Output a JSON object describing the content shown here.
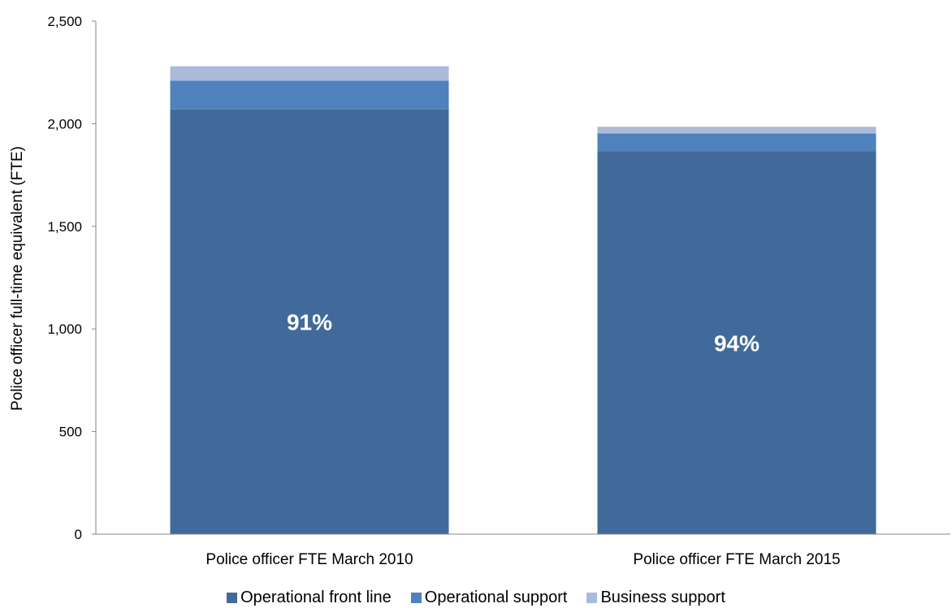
{
  "chart_data": {
    "type": "bar",
    "stacked": true,
    "categories": [
      "Police officer FTE March 2010",
      "Police officer FTE March 2015"
    ],
    "series": [
      {
        "name": "Operational front line",
        "values": [
          2070,
          1865
        ],
        "color": "#416a9b"
      },
      {
        "name": "Operational support",
        "values": [
          140,
          88
        ],
        "color": "#4f81bd"
      },
      {
        "name": "Business support",
        "values": [
          70,
          32
        ],
        "color": "#a9bbd8"
      }
    ],
    "data_labels": [
      "91%",
      "94%"
    ],
    "ylabel": "Police officer full-time equivalent (FTE)",
    "xlabel": "",
    "title": "",
    "ylim": [
      0,
      2500
    ],
    "yticks": [
      0,
      500,
      1000,
      1500,
      2000,
      2500
    ],
    "ytick_labels": [
      "0",
      "500",
      "1,000",
      "1,500",
      "2,000",
      "2,500"
    ],
    "grid": false,
    "legend_position": "bottom"
  }
}
